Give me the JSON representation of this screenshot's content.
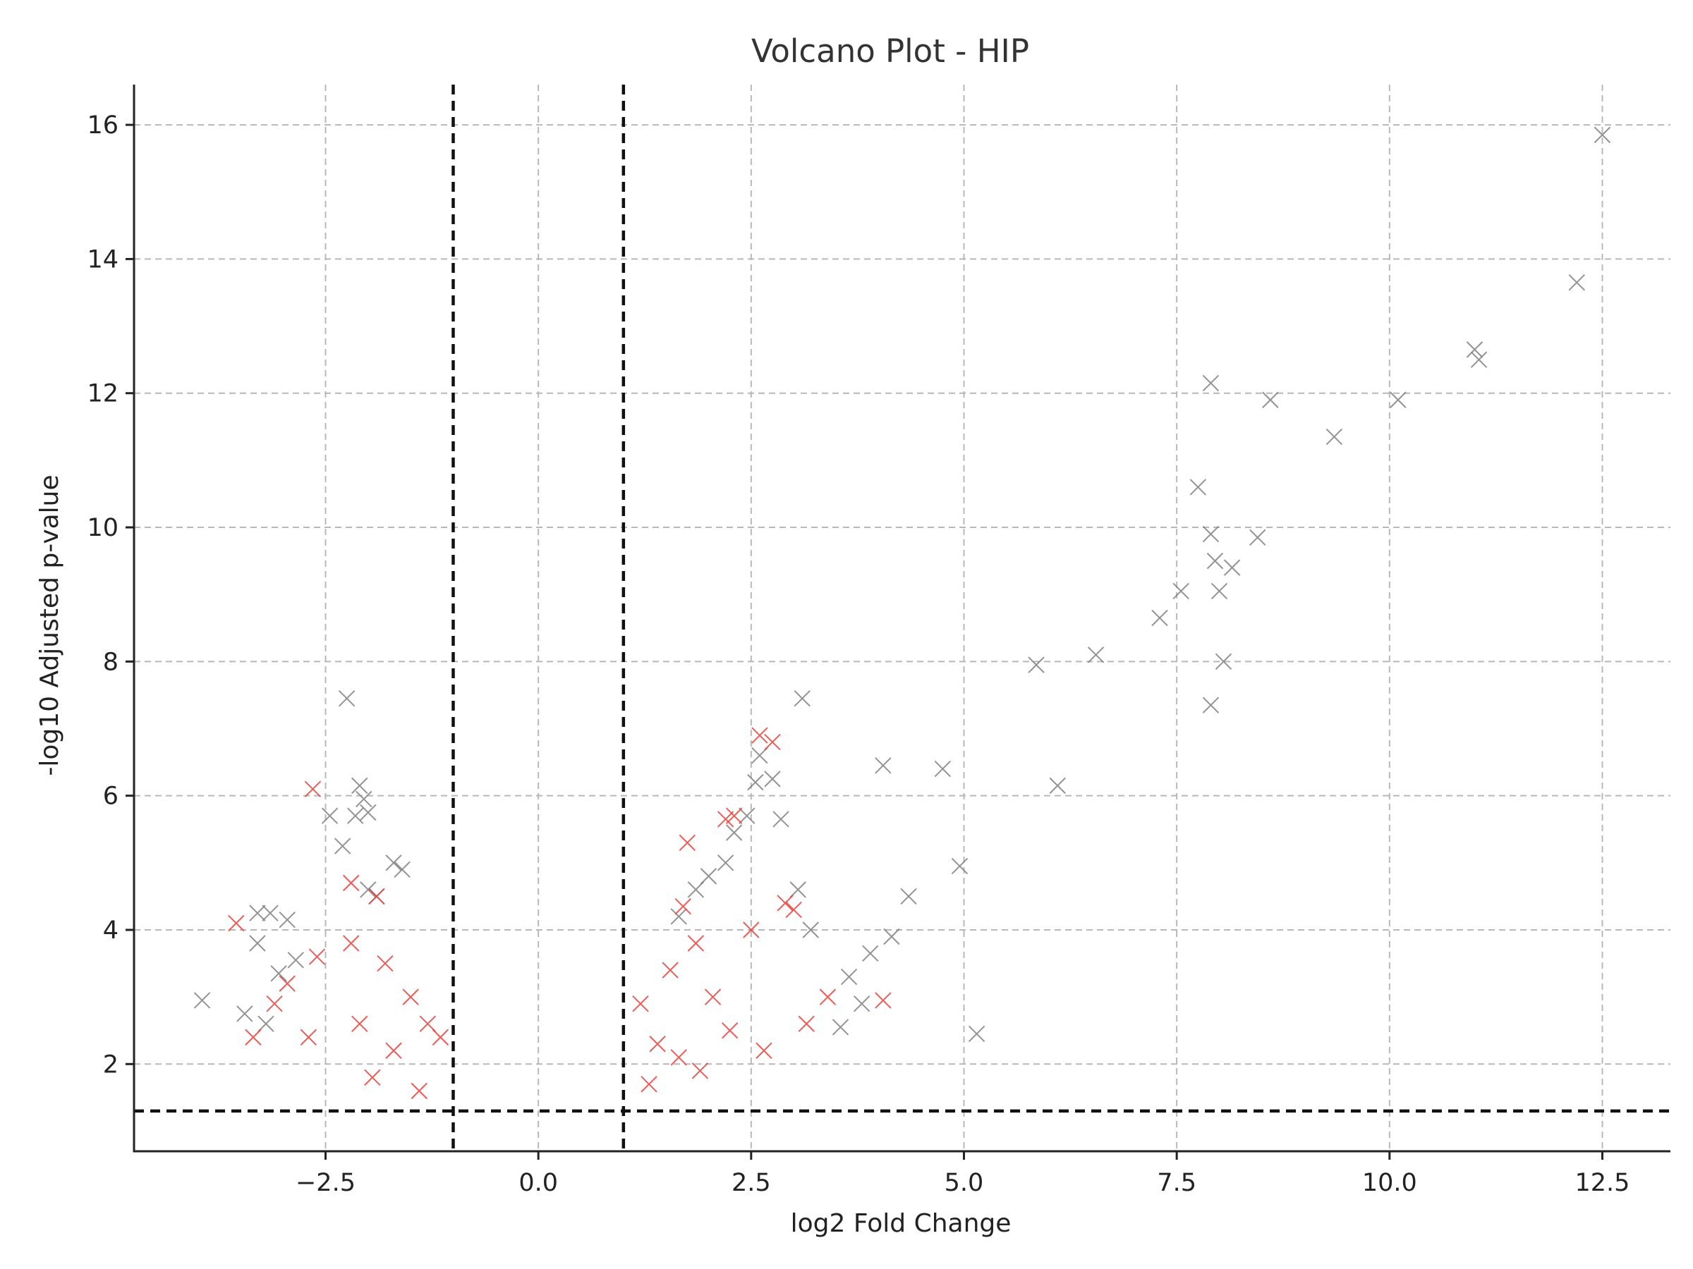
{
  "chart_data": {
    "type": "scatter",
    "title": "Volcano Plot - HIP",
    "xlabel": "log2 Fold Change",
    "ylabel": "-log10 Adjusted p-value",
    "xlim": [
      -4.75,
      13.3
    ],
    "ylim": [
      0.7,
      16.6
    ],
    "xticks": [
      -2.5,
      0.0,
      2.5,
      5.0,
      7.5,
      10.0,
      12.5
    ],
    "xtick_labels": [
      "−2.5",
      "0.0",
      "2.5",
      "5.0",
      "7.5",
      "10.0",
      "12.5"
    ],
    "yticks": [
      2,
      4,
      6,
      8,
      10,
      12,
      14,
      16
    ],
    "ytick_labels": [
      "2",
      "4",
      "6",
      "8",
      "10",
      "12",
      "14",
      "16"
    ],
    "grid": true,
    "marker": "x",
    "thresholds": {
      "log2fc": [
        -1,
        1
      ],
      "neg_log10_padj": 1.3
    },
    "series": [
      {
        "color": "#808080",
        "points": [
          [
            12.5,
            15.85
          ],
          [
            12.2,
            13.65
          ],
          [
            11.0,
            12.65
          ],
          [
            11.05,
            12.5
          ],
          [
            7.9,
            12.15
          ],
          [
            8.6,
            11.9
          ],
          [
            10.1,
            11.9
          ],
          [
            9.35,
            11.35
          ],
          [
            7.75,
            10.6
          ],
          [
            7.9,
            9.9
          ],
          [
            8.45,
            9.85
          ],
          [
            7.95,
            9.5
          ],
          [
            8.15,
            9.4
          ],
          [
            7.55,
            9.05
          ],
          [
            8.0,
            9.05
          ],
          [
            7.3,
            8.65
          ],
          [
            6.55,
            8.1
          ],
          [
            8.05,
            8.0
          ],
          [
            5.85,
            7.95
          ],
          [
            7.9,
            7.35
          ],
          [
            3.1,
            7.45
          ],
          [
            4.05,
            6.45
          ],
          [
            4.75,
            6.4
          ],
          [
            6.1,
            6.15
          ],
          [
            4.95,
            4.95
          ],
          [
            4.35,
            4.5
          ],
          [
            5.15,
            2.45
          ],
          [
            4.15,
            3.9
          ],
          [
            3.9,
            3.65
          ],
          [
            3.65,
            3.3
          ],
          [
            3.8,
            2.9
          ],
          [
            3.55,
            2.55
          ],
          [
            3.2,
            4.0
          ],
          [
            3.05,
            4.6
          ],
          [
            2.85,
            5.65
          ],
          [
            2.75,
            6.25
          ],
          [
            2.6,
            6.6
          ],
          [
            2.55,
            6.2
          ],
          [
            2.45,
            5.7
          ],
          [
            2.3,
            5.45
          ],
          [
            2.2,
            5.0
          ],
          [
            2.0,
            4.8
          ],
          [
            1.85,
            4.6
          ],
          [
            1.65,
            4.2
          ],
          [
            -2.25,
            7.45
          ],
          [
            -2.1,
            6.15
          ],
          [
            -2.05,
            5.95
          ],
          [
            -2.0,
            5.75
          ],
          [
            -2.15,
            5.7
          ],
          [
            -2.45,
            5.7
          ],
          [
            -2.3,
            5.25
          ],
          [
            -1.7,
            5.0
          ],
          [
            -1.6,
            4.9
          ],
          [
            -2.0,
            4.6
          ],
          [
            -1.9,
            4.5
          ],
          [
            -3.3,
            4.25
          ],
          [
            -3.15,
            4.25
          ],
          [
            -2.95,
            4.15
          ],
          [
            -3.3,
            3.8
          ],
          [
            -2.85,
            3.55
          ],
          [
            -3.05,
            3.35
          ],
          [
            -3.95,
            2.95
          ],
          [
            -3.45,
            2.75
          ],
          [
            -3.2,
            2.6
          ]
        ]
      },
      {
        "color": "#e8413b",
        "points": [
          [
            -2.65,
            6.1
          ],
          [
            -3.55,
            4.1
          ],
          [
            -2.2,
            4.7
          ],
          [
            -1.9,
            4.5
          ],
          [
            -2.6,
            3.6
          ],
          [
            -2.2,
            3.8
          ],
          [
            -2.95,
            3.2
          ],
          [
            -3.1,
            2.9
          ],
          [
            -3.35,
            2.4
          ],
          [
            -2.7,
            2.4
          ],
          [
            -1.8,
            3.5
          ],
          [
            -1.5,
            3.0
          ],
          [
            -1.3,
            2.6
          ],
          [
            -1.7,
            2.2
          ],
          [
            -1.15,
            2.4
          ],
          [
            -1.4,
            1.6
          ],
          [
            -1.95,
            1.8
          ],
          [
            -2.1,
            2.6
          ],
          [
            1.75,
            5.3
          ],
          [
            2.6,
            6.9
          ],
          [
            2.75,
            6.8
          ],
          [
            2.3,
            5.7
          ],
          [
            2.2,
            5.65
          ],
          [
            2.9,
            4.4
          ],
          [
            3.0,
            4.3
          ],
          [
            2.5,
            4.0
          ],
          [
            1.7,
            4.35
          ],
          [
            1.85,
            3.8
          ],
          [
            1.55,
            3.4
          ],
          [
            2.05,
            3.0
          ],
          [
            2.25,
            2.5
          ],
          [
            1.4,
            2.3
          ],
          [
            1.2,
            2.9
          ],
          [
            1.65,
            2.1
          ],
          [
            2.65,
            2.2
          ],
          [
            3.15,
            2.6
          ],
          [
            3.4,
            3.0
          ],
          [
            4.05,
            2.95
          ],
          [
            1.3,
            1.7
          ],
          [
            1.9,
            1.9
          ]
        ]
      }
    ]
  }
}
